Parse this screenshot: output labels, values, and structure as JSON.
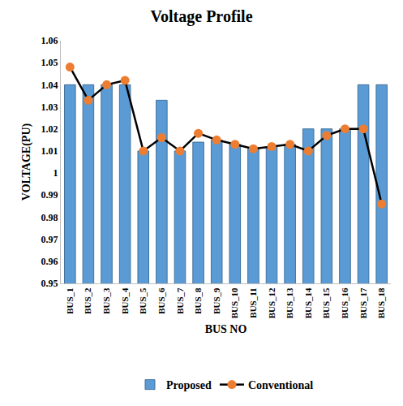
{
  "chart_data": {
    "type": "bar",
    "title": "Voltage Profile",
    "x_label": "BUS NO",
    "y_label": "VOLTAGE(PU)",
    "categories": [
      "BUS_1",
      "BUS_2",
      "BUS_3",
      "BUS_4",
      "BUS_5",
      "BUS_6",
      "BUS_7",
      "BUS_8",
      "BUS_9",
      "BUS_10",
      "BUS_11",
      "BUS_12",
      "BUS_13",
      "BUS_14",
      "BUS_15",
      "BUS_16",
      "BUS_17",
      "BUS_18"
    ],
    "series": [
      {
        "name": "Proposed",
        "type": "bar",
        "color": "#5b9bd5",
        "values": [
          1.04,
          1.04,
          1.04,
          1.04,
          1.01,
          1.033,
          1.01,
          1.014,
          1.015,
          1.013,
          1.011,
          1.012,
          1.013,
          1.02,
          1.02,
          1.02,
          1.04,
          1.04
        ]
      },
      {
        "name": "Conventional",
        "type": "line",
        "color": "#000000",
        "marker": "circle",
        "values": [
          1.048,
          1.033,
          1.04,
          1.042,
          1.01,
          1.016,
          1.01,
          1.018,
          1.015,
          1.013,
          1.011,
          1.012,
          1.013,
          1.01,
          1.017,
          1.02,
          1.02,
          0.986
        ]
      }
    ],
    "ylim": [
      0.95,
      1.06
    ],
    "yticks": [
      0.95,
      0.96,
      0.97,
      0.98,
      0.99,
      1,
      1.01,
      1.02,
      1.03,
      1.04,
      1.05,
      1.06
    ],
    "grid": false,
    "legend": "bottom"
  }
}
